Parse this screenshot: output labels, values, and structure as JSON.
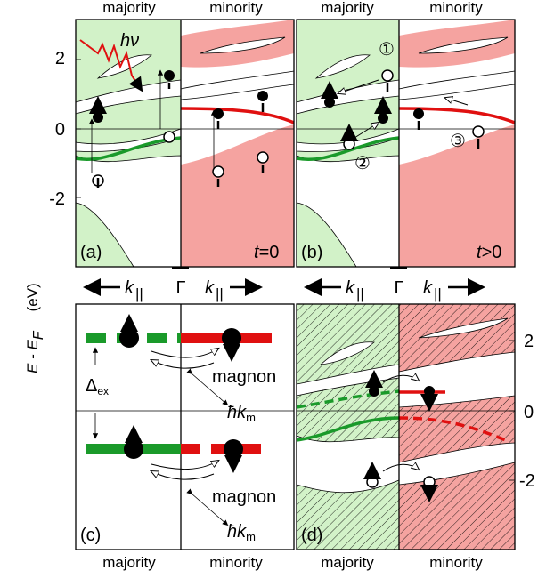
{
  "axis": {
    "label": "E - E",
    "label_sub": "F",
    "unit": "(eV)",
    "left_ticks": [
      "2",
      "0",
      "-2"
    ],
    "right_ticks": [
      "2",
      "0",
      "-2"
    ]
  },
  "k_axis": {
    "k": "k",
    "sub": "||",
    "gamma": "Γ"
  },
  "panels": [
    {
      "tag": "(a)",
      "top_labels": [
        "majority",
        "minority"
      ],
      "photon": "hν",
      "time": "t",
      "time_value": "=0"
    },
    {
      "tag": "(b)",
      "top_labels": [
        "majority",
        "minority"
      ],
      "steps": [
        "①",
        "②",
        "③"
      ],
      "time": "t",
      "time_value": ">0"
    },
    {
      "tag": "(c)",
      "bottom_labels": [
        "majority",
        "minority"
      ],
      "exchange": "Δ",
      "exchange_sub": "ex",
      "magnon": [
        "magnon",
        "magnon"
      ],
      "hbar_k": [
        "ħk",
        "ħk"
      ],
      "hbar_k_sub": [
        "m",
        "m"
      ]
    },
    {
      "tag": "(d)",
      "bottom_labels": [
        "majority",
        "minority"
      ]
    }
  ]
}
